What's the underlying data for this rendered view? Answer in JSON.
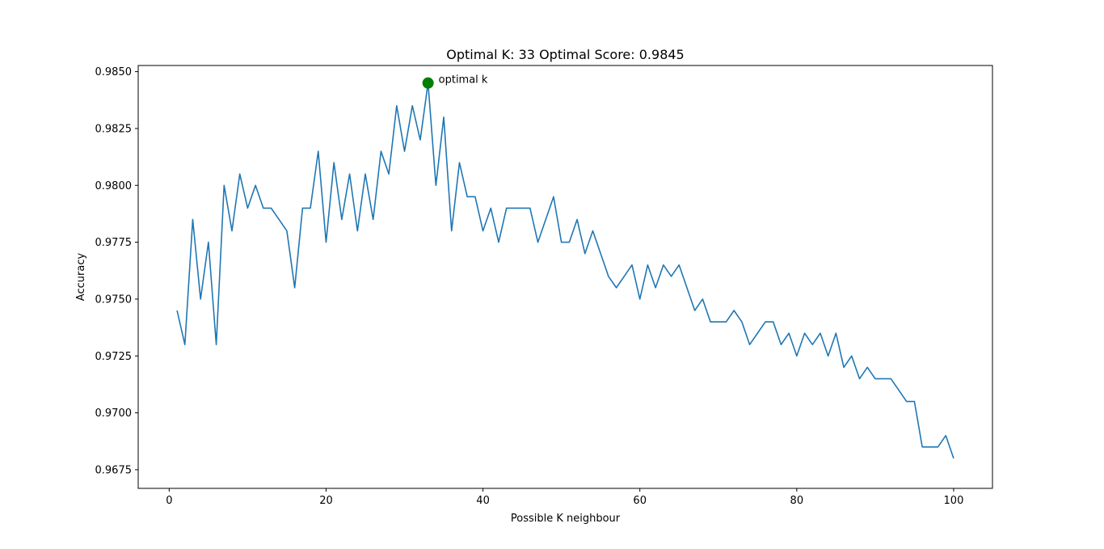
{
  "chart_data": {
    "type": "line",
    "title": "Optimal K: 33 Optimal Score: 0.9845",
    "xlabel": "Possible K neighbour",
    "ylabel": "Accuracy",
    "xlim": [
      -3.95,
      104.95
    ],
    "ylim": [
      0.96668,
      0.98527
    ],
    "xticks": [
      0,
      20,
      40,
      60,
      80,
      100
    ],
    "xtick_labels": [
      "0",
      "20",
      "40",
      "60",
      "80",
      "100"
    ],
    "yticks": [
      0.9675,
      0.97,
      0.9725,
      0.975,
      0.9775,
      0.98,
      0.9825,
      0.985
    ],
    "ytick_labels": [
      "0.9675",
      "0.9700",
      "0.9725",
      "0.9750",
      "0.9775",
      "0.9800",
      "0.9825",
      "0.9850"
    ],
    "grid": false,
    "line_color": "#1f77b4",
    "series": [
      {
        "x": [
          1,
          2,
          3,
          4,
          5,
          6,
          7,
          8,
          9,
          10,
          11,
          12,
          13,
          14,
          15,
          16,
          17,
          18,
          19,
          20,
          21,
          22,
          23,
          24,
          25,
          26,
          27,
          28,
          29,
          30,
          31,
          32,
          33,
          34,
          35,
          36,
          37,
          38,
          39,
          40,
          41,
          42,
          43,
          44,
          45,
          46,
          47,
          48,
          49,
          50,
          51,
          52,
          53,
          54,
          55,
          56,
          57,
          58,
          59,
          60,
          61,
          62,
          63,
          64,
          65,
          66,
          67,
          68,
          69,
          70,
          71,
          72,
          73,
          74,
          75,
          76,
          77,
          78,
          79,
          80,
          81,
          82,
          83,
          84,
          85,
          86,
          87,
          88,
          89,
          90,
          91,
          92,
          93,
          94,
          95,
          96,
          97,
          98,
          99,
          100
        ],
        "values": [
          0.9745,
          0.973,
          0.9785,
          0.975,
          0.9775,
          0.973,
          0.98,
          0.978,
          0.9805,
          0.979,
          0.98,
          0.979,
          0.979,
          0.9785,
          0.978,
          0.9755,
          0.979,
          0.979,
          0.9815,
          0.9775,
          0.981,
          0.9785,
          0.9805,
          0.978,
          0.9805,
          0.9785,
          0.9815,
          0.9805,
          0.9835,
          0.9815,
          0.9835,
          0.982,
          0.9845,
          0.98,
          0.983,
          0.978,
          0.981,
          0.9795,
          0.9795,
          0.978,
          0.979,
          0.9775,
          0.979,
          0.979,
          0.979,
          0.979,
          0.9775,
          0.9785,
          0.9795,
          0.9775,
          0.9775,
          0.9785,
          0.977,
          0.978,
          0.977,
          0.976,
          0.9755,
          0.976,
          0.9765,
          0.975,
          0.9765,
          0.9755,
          0.9765,
          0.976,
          0.9765,
          0.9755,
          0.9745,
          0.975,
          0.974,
          0.974,
          0.974,
          0.9745,
          0.974,
          0.973,
          0.9735,
          0.974,
          0.974,
          0.973,
          0.9735,
          0.9725,
          0.9735,
          0.973,
          0.9735,
          0.9725,
          0.9735,
          0.972,
          0.9725,
          0.9715,
          0.972,
          0.9715,
          0.9715,
          0.9715,
          0.971,
          0.9705,
          0.9705,
          0.9685,
          0.9685,
          0.9685,
          0.969,
          0.968
        ]
      }
    ],
    "highlight": {
      "x": 33,
      "y": 0.9845,
      "color": "#008000",
      "label": "optimal k"
    }
  }
}
